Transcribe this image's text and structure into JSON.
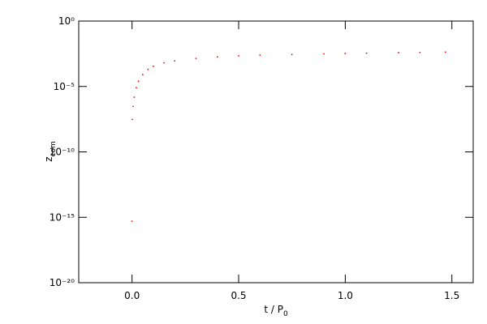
{
  "chart_data": {
    "type": "scatter",
    "xlabel": {
      "main": "t / P",
      "sub": "0"
    },
    "ylabel": {
      "main": "z",
      "sub": "com"
    },
    "log_y": true,
    "xlim": [
      -0.25,
      1.6
    ],
    "ylim": [
      1e-20,
      1
    ],
    "xticks": [
      {
        "value": 0,
        "label": "0.0"
      },
      0.5,
      {
        "value": 1,
        "label": "1.0"
      },
      1.5
    ],
    "yticks": [
      {
        "value": 1,
        "label": "10⁰"
      },
      {
        "value": 1e-05,
        "label": "10⁻⁵"
      },
      {
        "value": 1e-10,
        "label": "10⁻¹⁰"
      },
      {
        "value": 1e-15,
        "label": "10⁻¹⁵"
      },
      {
        "value": 1e-20,
        "label": "10⁻²⁰"
      }
    ],
    "series": [
      {
        "color": "#ff0000",
        "x": [
          0,
          0.001,
          0.005,
          0.01,
          0.02,
          0.03,
          0.05,
          0.075,
          0.1,
          0.15,
          0.2,
          0.3,
          0.4,
          0.5,
          0.6,
          0.75,
          0.9,
          1.0,
          1.1,
          1.25,
          1.35,
          1.47
        ],
        "values": [
          5e-16,
          3e-08,
          3e-07,
          1.5e-06,
          8e-06,
          2.5e-05,
          8e-05,
          0.0002,
          0.00035,
          0.00065,
          0.0009,
          0.0014,
          0.0018,
          0.0022,
          0.0025,
          0.0028,
          0.0031,
          0.0033,
          0.0035,
          0.0038,
          0.004,
          0.0043
        ]
      }
    ]
  }
}
